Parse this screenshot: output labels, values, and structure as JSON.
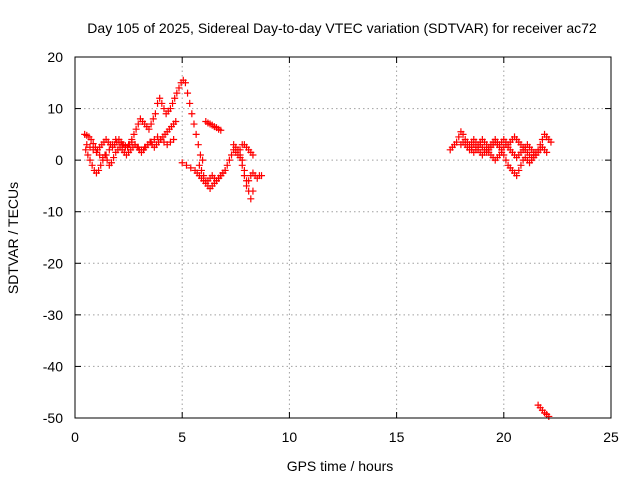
{
  "chart_data": {
    "type": "scatter",
    "title": "Day 105 of 2025, Sidereal Day-to-day VTEC variation (SDTVAR) for receiver ac72",
    "xlabel": "GPS time / hours",
    "ylabel": "SDTVAR / TECUs",
    "xlim": [
      0,
      25
    ],
    "ylim": [
      -50,
      20
    ],
    "xticks": [
      "0",
      "5",
      "10",
      "15",
      "20",
      "25"
    ],
    "yticks": [
      "-50",
      "-40",
      "-30",
      "-20",
      "-10",
      "0",
      "10",
      "20"
    ],
    "grid": true,
    "marker": "plus",
    "color": "#ff0000",
    "series": [
      {
        "name": "segment-1",
        "x": [
          0.45,
          0.55,
          0.65,
          0.75,
          0.85,
          0.95,
          1.05,
          1.15,
          1.25,
          1.35,
          1.45,
          1.55,
          1.65,
          1.75,
          1.85,
          1.95,
          2.05,
          2.15,
          2.25,
          2.35,
          2.45,
          2.55,
          2.65,
          2.75,
          2.85,
          2.95,
          3.05,
          3.15,
          3.25,
          3.35,
          3.45,
          3.55,
          3.65,
          3.75,
          3.85,
          3.95,
          4.05,
          4.15,
          4.25,
          4.35,
          4.45,
          4.55,
          4.65,
          4.75,
          4.85,
          4.95,
          5.05,
          5.15,
          5.25,
          5.35,
          5.45,
          5.55,
          5.65,
          5.75,
          5.85,
          5.95
        ],
        "y": [
          5,
          4.8,
          4.5,
          4,
          3.2,
          2.5,
          2,
          2.5,
          3,
          3.5,
          4,
          3.5,
          3,
          2.5,
          3,
          3.5,
          4,
          3.5,
          3,
          2.8,
          2.5,
          3,
          4,
          5,
          6,
          7,
          8,
          7.5,
          7,
          6.5,
          6,
          7,
          8,
          9,
          11,
          12,
          11,
          10,
          9,
          9.5,
          10,
          11,
          12,
          13,
          14,
          15,
          15.5,
          15,
          13,
          11,
          9,
          7,
          5,
          3,
          1,
          0
        ]
      },
      {
        "name": "segment-2",
        "x": [
          0.5,
          0.6,
          0.7,
          0.8,
          0.9,
          1.0,
          1.1,
          1.2,
          1.3,
          1.4,
          1.5,
          1.6,
          1.7,
          1.8,
          1.9,
          2.0,
          2.1,
          2.2,
          2.3,
          2.4,
          2.5,
          2.6,
          2.7,
          2.8,
          2.9,
          3.0,
          3.1,
          3.2,
          3.3,
          3.4,
          3.5,
          3.6,
          3.7,
          3.8,
          3.9,
          4.0,
          4.1,
          4.2,
          4.3,
          4.4,
          4.5,
          4.6,
          4.7
        ],
        "y": [
          2,
          1,
          0,
          -1,
          -2,
          -2.5,
          -2,
          -1,
          0,
          1,
          0,
          -1,
          -0.5,
          0.5,
          1.5,
          2,
          2.5,
          2,
          1.5,
          1,
          1.5,
          2,
          2.5,
          3,
          2.5,
          2,
          1.5,
          2,
          2.5,
          3,
          3.5,
          3,
          2.5,
          3,
          3.5,
          4,
          4.5,
          5,
          5.5,
          6,
          6.5,
          7,
          7.5
        ]
      },
      {
        "name": "segment-3",
        "x": [
          0.55,
          0.7,
          0.85,
          1.0,
          1.15,
          1.3,
          1.45,
          1.6,
          1.75,
          1.9,
          2.05,
          2.2,
          2.35,
          2.5,
          2.65,
          2.8,
          2.95,
          3.1,
          3.25,
          3.4,
          3.55,
          3.7,
          3.85,
          4.0,
          4.15,
          4.3,
          4.45,
          4.6
        ],
        "y": [
          3,
          2.5,
          2,
          1.5,
          1,
          0.5,
          1,
          2,
          3,
          4,
          3.5,
          3,
          2.5,
          3,
          3.5,
          3,
          2.5,
          2,
          2.5,
          3,
          3.5,
          4,
          4.5,
          4,
          3.5,
          3,
          3.5,
          4
        ]
      },
      {
        "name": "segment-4",
        "x": [
          5.0,
          5.2,
          5.4,
          5.6,
          5.7,
          5.8,
          5.9,
          6.0,
          6.1,
          6.2,
          6.3,
          6.4,
          6.5,
          6.6,
          6.7,
          6.8,
          6.9,
          7.0,
          7.1,
          7.2,
          7.3,
          7.4,
          7.5,
          7.6,
          7.7,
          7.8,
          7.9,
          8.0,
          8.1,
          8.2,
          8.3,
          8.4,
          8.5,
          8.6,
          8.7
        ],
        "y": [
          -0.5,
          -1,
          -1.5,
          -2,
          -2.5,
          -3,
          -3.5,
          -4,
          -4.5,
          -4,
          -3.5,
          -3,
          -3.5,
          -4,
          -3.5,
          -3,
          -2.5,
          -2,
          -1,
          0,
          1,
          2,
          1.5,
          1,
          0.5,
          -1,
          -3,
          -5,
          -4,
          -3,
          -2.5,
          -3,
          -3.5,
          -3,
          -3
        ]
      },
      {
        "name": "segment-5",
        "x": [
          5.8,
          5.9,
          6.0,
          6.1,
          6.2,
          6.3,
          6.4,
          6.5,
          6.6,
          6.7,
          6.8,
          6.9,
          7.0
        ],
        "y": [
          -1,
          -2,
          -3,
          -4,
          -5,
          -5.5,
          -5,
          -4.5,
          -4,
          -3.5,
          -3,
          -2.5,
          -2
        ]
      },
      {
        "name": "segment-6",
        "x": [
          6.1,
          6.2,
          6.3,
          6.4,
          6.5,
          6.6,
          6.7,
          6.8
        ],
        "y": [
          7.5,
          7.2,
          7,
          6.8,
          6.5,
          6.3,
          6,
          5.8
        ]
      },
      {
        "name": "segment-7",
        "x": [
          7.4,
          7.5,
          7.6,
          7.7,
          7.8,
          7.9,
          8.0,
          8.1,
          8.2,
          8.3
        ],
        "y": [
          3,
          2.5,
          2,
          1,
          0,
          -2,
          -4,
          -6,
          -7.5,
          -6
        ]
      },
      {
        "name": "segment-8",
        "x": [
          7.7,
          7.8,
          7.9,
          8.0,
          8.1,
          8.2,
          8.3
        ],
        "y": [
          2,
          3,
          3,
          2.5,
          2,
          1.5,
          1
        ]
      },
      {
        "name": "segment-9",
        "x": [
          17.5,
          17.6,
          17.7,
          17.8,
          17.9,
          18.0,
          18.1,
          18.2,
          18.3,
          18.4,
          18.5,
          18.6,
          18.7,
          18.8,
          18.9,
          19.0,
          19.1,
          19.2,
          19.3,
          19.4,
          19.5,
          19.6,
          19.7,
          19.8,
          19.9,
          20.0,
          20.1,
          20.2,
          20.3,
          20.4,
          20.5,
          20.6,
          20.7,
          20.8,
          20.9,
          21.0,
          21.1,
          21.2,
          21.3,
          21.4,
          21.5,
          21.6,
          21.7,
          21.8,
          21.9,
          22.0,
          22.1,
          22.2
        ],
        "y": [
          2,
          2.5,
          3,
          3.5,
          4.5,
          5.5,
          5,
          4,
          3.5,
          3,
          3.5,
          4,
          3.5,
          3,
          3.5,
          4,
          3.5,
          3,
          2.5,
          3,
          3.5,
          4,
          3.5,
          3,
          3.5,
          4,
          3.5,
          3,
          3.5,
          4,
          4.5,
          4,
          3.5,
          3,
          2.5,
          2,
          1.5,
          1,
          0.5,
          1,
          1.5,
          2,
          3,
          4,
          5,
          4.5,
          4,
          3.5
        ]
      },
      {
        "name": "segment-10",
        "x": [
          18.0,
          18.1,
          18.2,
          18.3,
          18.4,
          18.5,
          18.6,
          18.7,
          18.8,
          18.9,
          19.0,
          19.1,
          19.2,
          19.3,
          19.4,
          19.5,
          19.6,
          19.7,
          19.8,
          19.9,
          20.0,
          20.1,
          20.2,
          20.3,
          20.4,
          20.5,
          20.6,
          20.7,
          20.8,
          20.9,
          21.0,
          21.1,
          21.2,
          21.3,
          21.4,
          21.5,
          21.6,
          21.7,
          21.8,
          21.9,
          22.0
        ],
        "y": [
          3,
          3.5,
          3,
          2.5,
          2,
          2.5,
          3,
          2.5,
          2,
          1.5,
          1,
          1.5,
          2,
          1.5,
          1,
          0.5,
          0,
          0.5,
          1,
          1.5,
          1,
          0,
          -1,
          -1.5,
          -2,
          -2.5,
          -3,
          -2,
          -1,
          0,
          0.5,
          0,
          -0.5,
          0,
          0.5,
          1,
          1.5,
          2,
          2.5,
          2,
          1.5
        ]
      },
      {
        "name": "segment-11",
        "x": [
          18.5,
          18.6,
          18.7,
          18.8,
          18.9,
          19.0,
          19.1,
          19.2,
          19.3,
          19.4,
          19.5,
          19.6,
          19.7,
          19.8,
          19.9,
          20.0,
          20.1,
          20.2,
          20.3,
          20.4,
          20.5,
          20.6,
          20.7,
          20.8,
          20.9,
          21.0,
          21.1,
          21.2,
          21.3,
          21.4,
          21.5
        ],
        "y": [
          2,
          1.5,
          2,
          2.5,
          3,
          2.5,
          2,
          1.5,
          2,
          2.5,
          3,
          3.5,
          3,
          2.5,
          2,
          2.5,
          3,
          2.5,
          2,
          1.5,
          1,
          0.5,
          1,
          1.5,
          2,
          2.5,
          3,
          2.5,
          2,
          1.5,
          1
        ]
      },
      {
        "name": "segment-12",
        "x": [
          21.6,
          21.7,
          21.8,
          21.9,
          22.0,
          22.1
        ],
        "y": [
          -47.5,
          -48,
          -48.5,
          -49,
          -49.3,
          -49.7
        ]
      }
    ]
  }
}
